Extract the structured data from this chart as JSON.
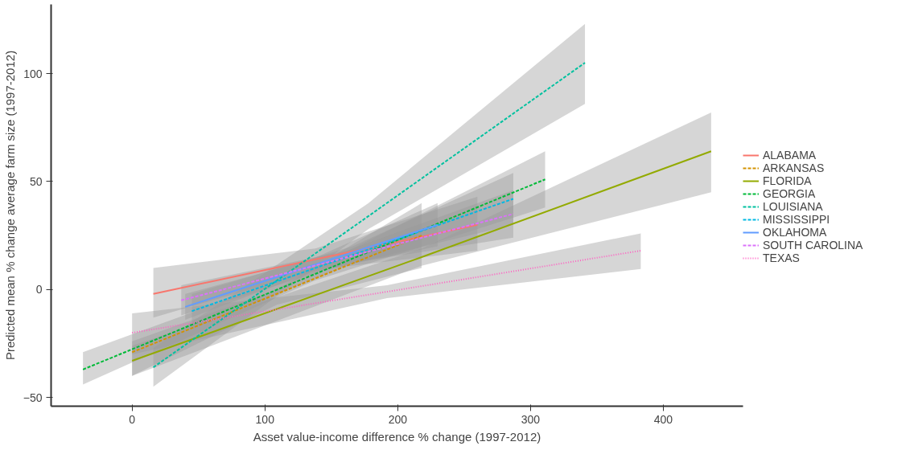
{
  "chart_data": {
    "type": "line",
    "xlabel": "Asset value-income difference % change (1997-2012)",
    "ylabel": "Predicted mean % change average farm size (1997-2012)",
    "xlim": [
      -61,
      460
    ],
    "ylim": [
      -54,
      132
    ],
    "xticks": [
      0,
      100,
      200,
      300,
      400
    ],
    "yticks": [
      -50,
      0,
      50,
      100
    ],
    "grid": false,
    "legend": "right",
    "marker": "none",
    "series": [
      {
        "name": "ALABAMA",
        "color": "#f8766d",
        "line_style": "solid",
        "x": [
          16,
          138,
          260
        ],
        "values": [
          -2,
          14,
          30
        ],
        "lower": [
          -13,
          9,
          18
        ],
        "upper": [
          10,
          19,
          43
        ]
      },
      {
        "name": "ARKANSAS",
        "color": "#d39200",
        "line_style": "dashed",
        "x": [
          0,
          109,
          218
        ],
        "values": [
          -29,
          -2,
          25
        ],
        "lower": [
          -40,
          -7,
          10
        ],
        "upper": [
          -24,
          0,
          40
        ]
      },
      {
        "name": "FLORIDA",
        "color": "#93aa00",
        "line_style": "solid",
        "x": [
          0,
          218,
          436
        ],
        "values": [
          -33,
          15,
          64
        ],
        "lower": [
          -40,
          11,
          45
        ],
        "upper": [
          -26,
          19,
          82
        ]
      },
      {
        "name": "GEORGIA",
        "color": "#00ba38",
        "line_style": "dashed",
        "x": [
          -37,
          137,
          311
        ],
        "values": [
          -37,
          7,
          51
        ],
        "lower": [
          -44,
          4,
          38
        ],
        "upper": [
          -29,
          10,
          64
        ]
      },
      {
        "name": "LOUISIANA",
        "color": "#00c19f",
        "line_style": "dashed",
        "x": [
          16,
          178,
          341
        ],
        "values": [
          -36,
          34,
          105
        ],
        "lower": [
          -45,
          28,
          86
        ],
        "upper": [
          -27,
          40,
          123
        ]
      },
      {
        "name": "MISSISSIPPI",
        "color": "#00b9e3",
        "line_style": "dashed",
        "x": [
          45,
          166,
          287
        ],
        "values": [
          -10,
          16,
          42
        ],
        "lower": [
          -18,
          12,
          30
        ],
        "upper": [
          -2,
          20,
          54
        ]
      },
      {
        "name": "OKLAHOMA",
        "color": "#619cff",
        "line_style": "solid",
        "x": [
          40,
          135,
          230
        ],
        "values": [
          -8,
          11,
          30
        ],
        "lower": [
          -14,
          8,
          20
        ],
        "upper": [
          -2,
          14,
          40
        ]
      },
      {
        "name": "SOUTH CAROLINA",
        "color": "#db72fb",
        "line_style": "dashed",
        "x": [
          37,
          162,
          287
        ],
        "values": [
          -5,
          15,
          35
        ],
        "lower": [
          -12,
          12,
          24
        ],
        "upper": [
          2,
          18,
          46
        ]
      },
      {
        "name": "TEXAS",
        "color": "#ff61c3",
        "line_style": "dotted",
        "x": [
          0,
          192,
          383
        ],
        "values": [
          -20,
          -1,
          18
        ],
        "lower": [
          -30,
          -4,
          9.5
        ],
        "upper": [
          -11,
          2,
          26
        ]
      }
    ]
  }
}
